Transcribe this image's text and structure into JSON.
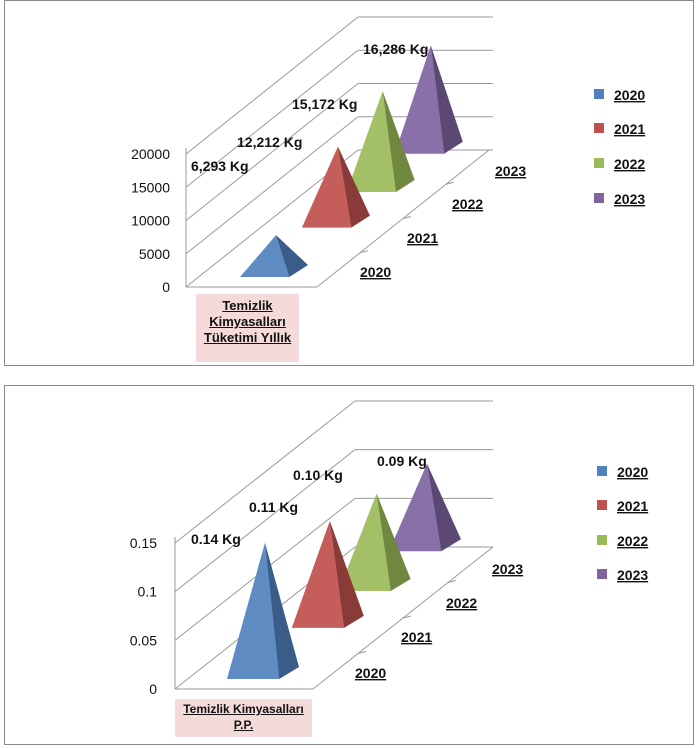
{
  "colors": {
    "2020": "#4f81bd",
    "2021": "#c0504d",
    "2022": "#9bbb59",
    "2023": "#8064a2",
    "grid": "#9a9a9a",
    "frame": "#8a8a8a",
    "category_box": "#f5dada"
  },
  "chart_data": [
    {
      "type": "bar",
      "bar_shape": "3d-pyramid",
      "categories": [
        "Temizlik Kimyasalları Tüketimi Yıllık"
      ],
      "series": [
        {
          "name": "2020",
          "values": [
            6293
          ]
        },
        {
          "name": "2021",
          "values": [
            12212
          ]
        },
        {
          "name": "2022",
          "values": [
            15172
          ]
        },
        {
          "name": "2023",
          "values": [
            16286
          ]
        }
      ],
      "data_labels": [
        "6,293  Kg",
        "12,212  Kg",
        "15,172  Kg",
        "16,286 Kg"
      ],
      "depth_axis_labels": [
        "2020",
        "2021",
        "2022",
        "2023"
      ],
      "y_ticks": [
        "0",
        "5000",
        "10000",
        "15000",
        "20000"
      ],
      "ylim": [
        0,
        20000
      ],
      "grid": true,
      "legend_position": "right",
      "legend": [
        "2020",
        "2021",
        "2022",
        "2023"
      ]
    },
    {
      "type": "bar",
      "bar_shape": "3d-pyramid",
      "categories": [
        "Temizlik Kimyasalları P.P."
      ],
      "series": [
        {
          "name": "2020",
          "values": [
            0.14
          ]
        },
        {
          "name": "2021",
          "values": [
            0.11
          ]
        },
        {
          "name": "2022",
          "values": [
            0.1
          ]
        },
        {
          "name": "2023",
          "values": [
            0.09
          ]
        }
      ],
      "data_labels": [
        "0.14 Kg",
        "0.11 Kg",
        "0.10 Kg",
        "0.09 Kg"
      ],
      "depth_axis_labels": [
        "2020",
        "2021",
        "2022",
        "2023"
      ],
      "y_ticks": [
        "0",
        "0.05",
        "0.1",
        "0.15"
      ],
      "ylim": [
        0,
        0.15
      ],
      "grid": true,
      "legend_position": "right",
      "legend": [
        "2020",
        "2021",
        "2022",
        "2023"
      ]
    }
  ],
  "charts": [
    {
      "category_label_line1": "Temizlik",
      "category_label_line2": "Kimyasalları",
      "category_label_line3": "Tüketimi Yıllık"
    },
    {
      "category_label_line1": "Temizlik Kimyasalları",
      "category_label_line2": "P.P."
    }
  ]
}
